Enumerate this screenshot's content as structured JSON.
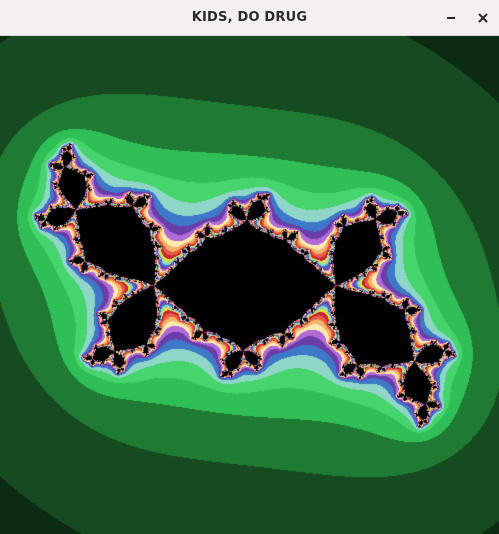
{
  "window": {
    "title": "KIDS, DO DRUG",
    "minimize_icon": "minimize-icon",
    "close_icon": "close-icon"
  },
  "fractal": {
    "type": "julia-set",
    "background": "#000000",
    "palette": [
      "#0d2a12",
      "#164a20",
      "#1f7a34",
      "#2fbf56",
      "#46d46c",
      "#8fd6c8",
      "#3e78c8",
      "#6a3ea8",
      "#b06ad6",
      "#ffe9b0",
      "#f2b36a",
      "#e85a44",
      "#c8203a",
      "#d8e040"
    ]
  }
}
